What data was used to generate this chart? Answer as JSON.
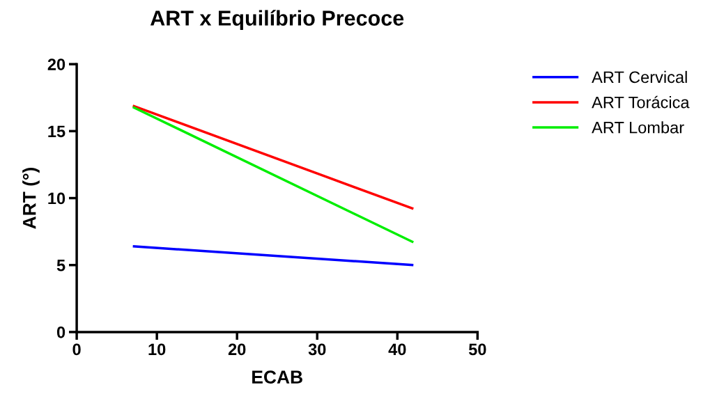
{
  "chart_data": {
    "type": "line",
    "title": "ART x Equilíbrio Precoce",
    "xlabel": "ECAB",
    "ylabel": "ART (°)",
    "x": [
      7,
      42
    ],
    "series": [
      {
        "name": "ART Cervical",
        "color": "#0000ff",
        "values": [
          6.4,
          5.0
        ]
      },
      {
        "name": "ART Torácica",
        "color": "#ff0000",
        "values": [
          16.9,
          9.2
        ]
      },
      {
        "name": "ART Lombar",
        "color": "#00ee00",
        "values": [
          16.8,
          6.7
        ]
      }
    ],
    "xlim": [
      0,
      50
    ],
    "xticks": [
      0,
      10,
      20,
      30,
      40,
      50
    ],
    "ylim": [
      0,
      20
    ],
    "yticks": [
      0,
      5,
      10,
      15,
      20
    ],
    "grid": false,
    "legend": "right",
    "marker": "none",
    "line_style": "solid"
  }
}
